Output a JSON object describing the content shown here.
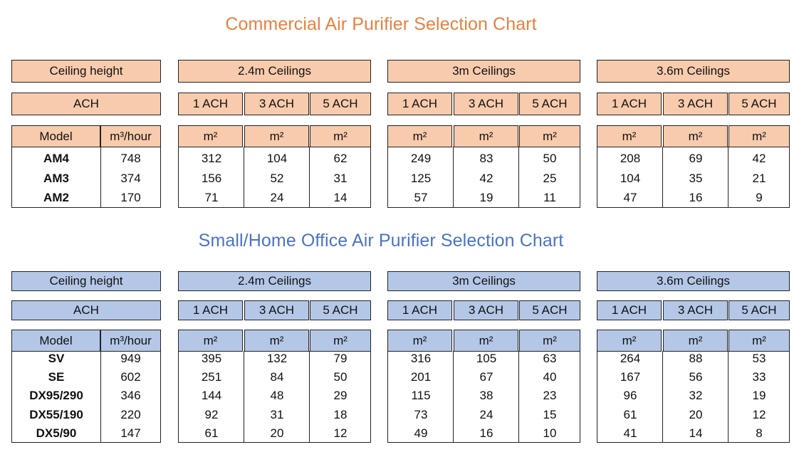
{
  "colors": {
    "orange_fill": "#f8cbad",
    "blue_fill": "#b4c7e7",
    "orange_title": "#ec7f3f",
    "blue_title": "#4b73c4"
  },
  "tables": [
    {
      "title": "Commercial Air Purifier Selection Chart",
      "ceiling_label": "Ceiling height",
      "ach_label": "ACH",
      "groups": [
        "2.4m Ceilings",
        "3m Ceilings",
        "3.6m Ceilings"
      ],
      "ach_levels": [
        "1 ACH",
        "3 ACH",
        "5 ACH"
      ],
      "model_header": "Model",
      "flow_header": "m³/hour",
      "area_header": "m²",
      "rows": [
        {
          "model": "AM4",
          "flow": "748",
          "areas": [
            "312",
            "104",
            "62",
            "249",
            "83",
            "50",
            "208",
            "69",
            "42"
          ]
        },
        {
          "model": "AM3",
          "flow": "374",
          "areas": [
            "156",
            "52",
            "31",
            "125",
            "42",
            "25",
            "104",
            "35",
            "21"
          ]
        },
        {
          "model": "AM2",
          "flow": "170",
          "areas": [
            "71",
            "24",
            "14",
            "57",
            "19",
            "11",
            "47",
            "16",
            "9"
          ]
        }
      ]
    },
    {
      "title": "Small/Home Office Air Purifier Selection Chart",
      "ceiling_label": "Ceiling height",
      "ach_label": "ACH",
      "groups": [
        "2.4m Ceilings",
        "3m Ceilings",
        "3.6m Ceilings"
      ],
      "ach_levels": [
        "1 ACH",
        "3 ACH",
        "5 ACH"
      ],
      "model_header": "Model",
      "flow_header": "m³/hour",
      "area_header": "m²",
      "rows": [
        {
          "model": "SV",
          "flow": "949",
          "areas": [
            "395",
            "132",
            "79",
            "316",
            "105",
            "63",
            "264",
            "88",
            "53"
          ]
        },
        {
          "model": "SE",
          "flow": "602",
          "areas": [
            "251",
            "84",
            "50",
            "201",
            "67",
            "40",
            "167",
            "56",
            "33"
          ]
        },
        {
          "model": "DX95/290",
          "flow": "346",
          "areas": [
            "144",
            "48",
            "29",
            "115",
            "38",
            "23",
            "96",
            "32",
            "19"
          ]
        },
        {
          "model": "DX55/190",
          "flow": "220",
          "areas": [
            "92",
            "31",
            "18",
            "73",
            "24",
            "15",
            "61",
            "20",
            "12"
          ]
        },
        {
          "model": "DX5/90",
          "flow": "147",
          "areas": [
            "61",
            "20",
            "12",
            "49",
            "16",
            "10",
            "41",
            "14",
            "8"
          ]
        }
      ]
    }
  ]
}
